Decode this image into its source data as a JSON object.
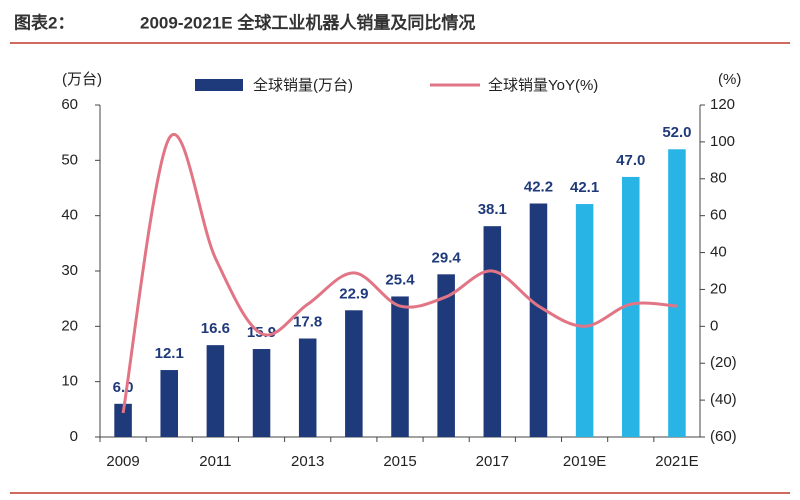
{
  "chart_data": {
    "type": "bar-line",
    "figure_label": "图表2：",
    "title": "2009-2021E 全球工业机器人销量及同比情况",
    "y_label": "(万台)",
    "y2_label": "(%)",
    "categories": [
      "2009",
      null,
      "2011",
      null,
      "2013",
      null,
      "2015",
      null,
      "2017",
      null,
      "2019E",
      null,
      "2021E"
    ],
    "series": [
      {
        "name": "全球销量(万台)",
        "type": "bar",
        "colors": [
          "#1f3a7a",
          "#1f3a7a",
          "#1f3a7a",
          "#1f3a7a",
          "#1f3a7a",
          "#1f3a7a",
          "#1f3a7a",
          "#1f3a7a",
          "#1f3a7a",
          "#1f3a7a",
          "#29b4e6",
          "#29b4e6",
          "#29b4e6"
        ],
        "color": "#1f3a7a",
        "values": [
          6.0,
          12.1,
          16.6,
          15.9,
          17.8,
          22.9,
          25.4,
          29.4,
          38.1,
          42.2,
          42.1,
          47.0,
          52.0
        ],
        "value_labels": [
          "6.0",
          "12.1",
          "16.6",
          "15.9",
          "17.8",
          "22.9",
          "25.4",
          "29.4",
          "38.1",
          "42.2",
          "42.1",
          "47.0",
          "52.0"
        ]
      },
      {
        "name": "全球销量YoY(%)",
        "type": "line",
        "axis": "y2",
        "color": "#e27585",
        "values": [
          -47,
          102,
          37,
          -4,
          12,
          29,
          11,
          16,
          30,
          11,
          0,
          12,
          11
        ]
      }
    ],
    "ylim": [
      0,
      60
    ],
    "yticks": [
      0,
      10,
      20,
      30,
      40,
      50,
      60
    ],
    "y2lim": [
      -60,
      120
    ],
    "y2ticks": [
      {
        "value": -60,
        "label": "(60)"
      },
      {
        "value": -40,
        "label": "(40)"
      },
      {
        "value": -20,
        "label": "(20)"
      },
      0,
      20,
      40,
      60,
      80,
      100,
      120
    ]
  }
}
